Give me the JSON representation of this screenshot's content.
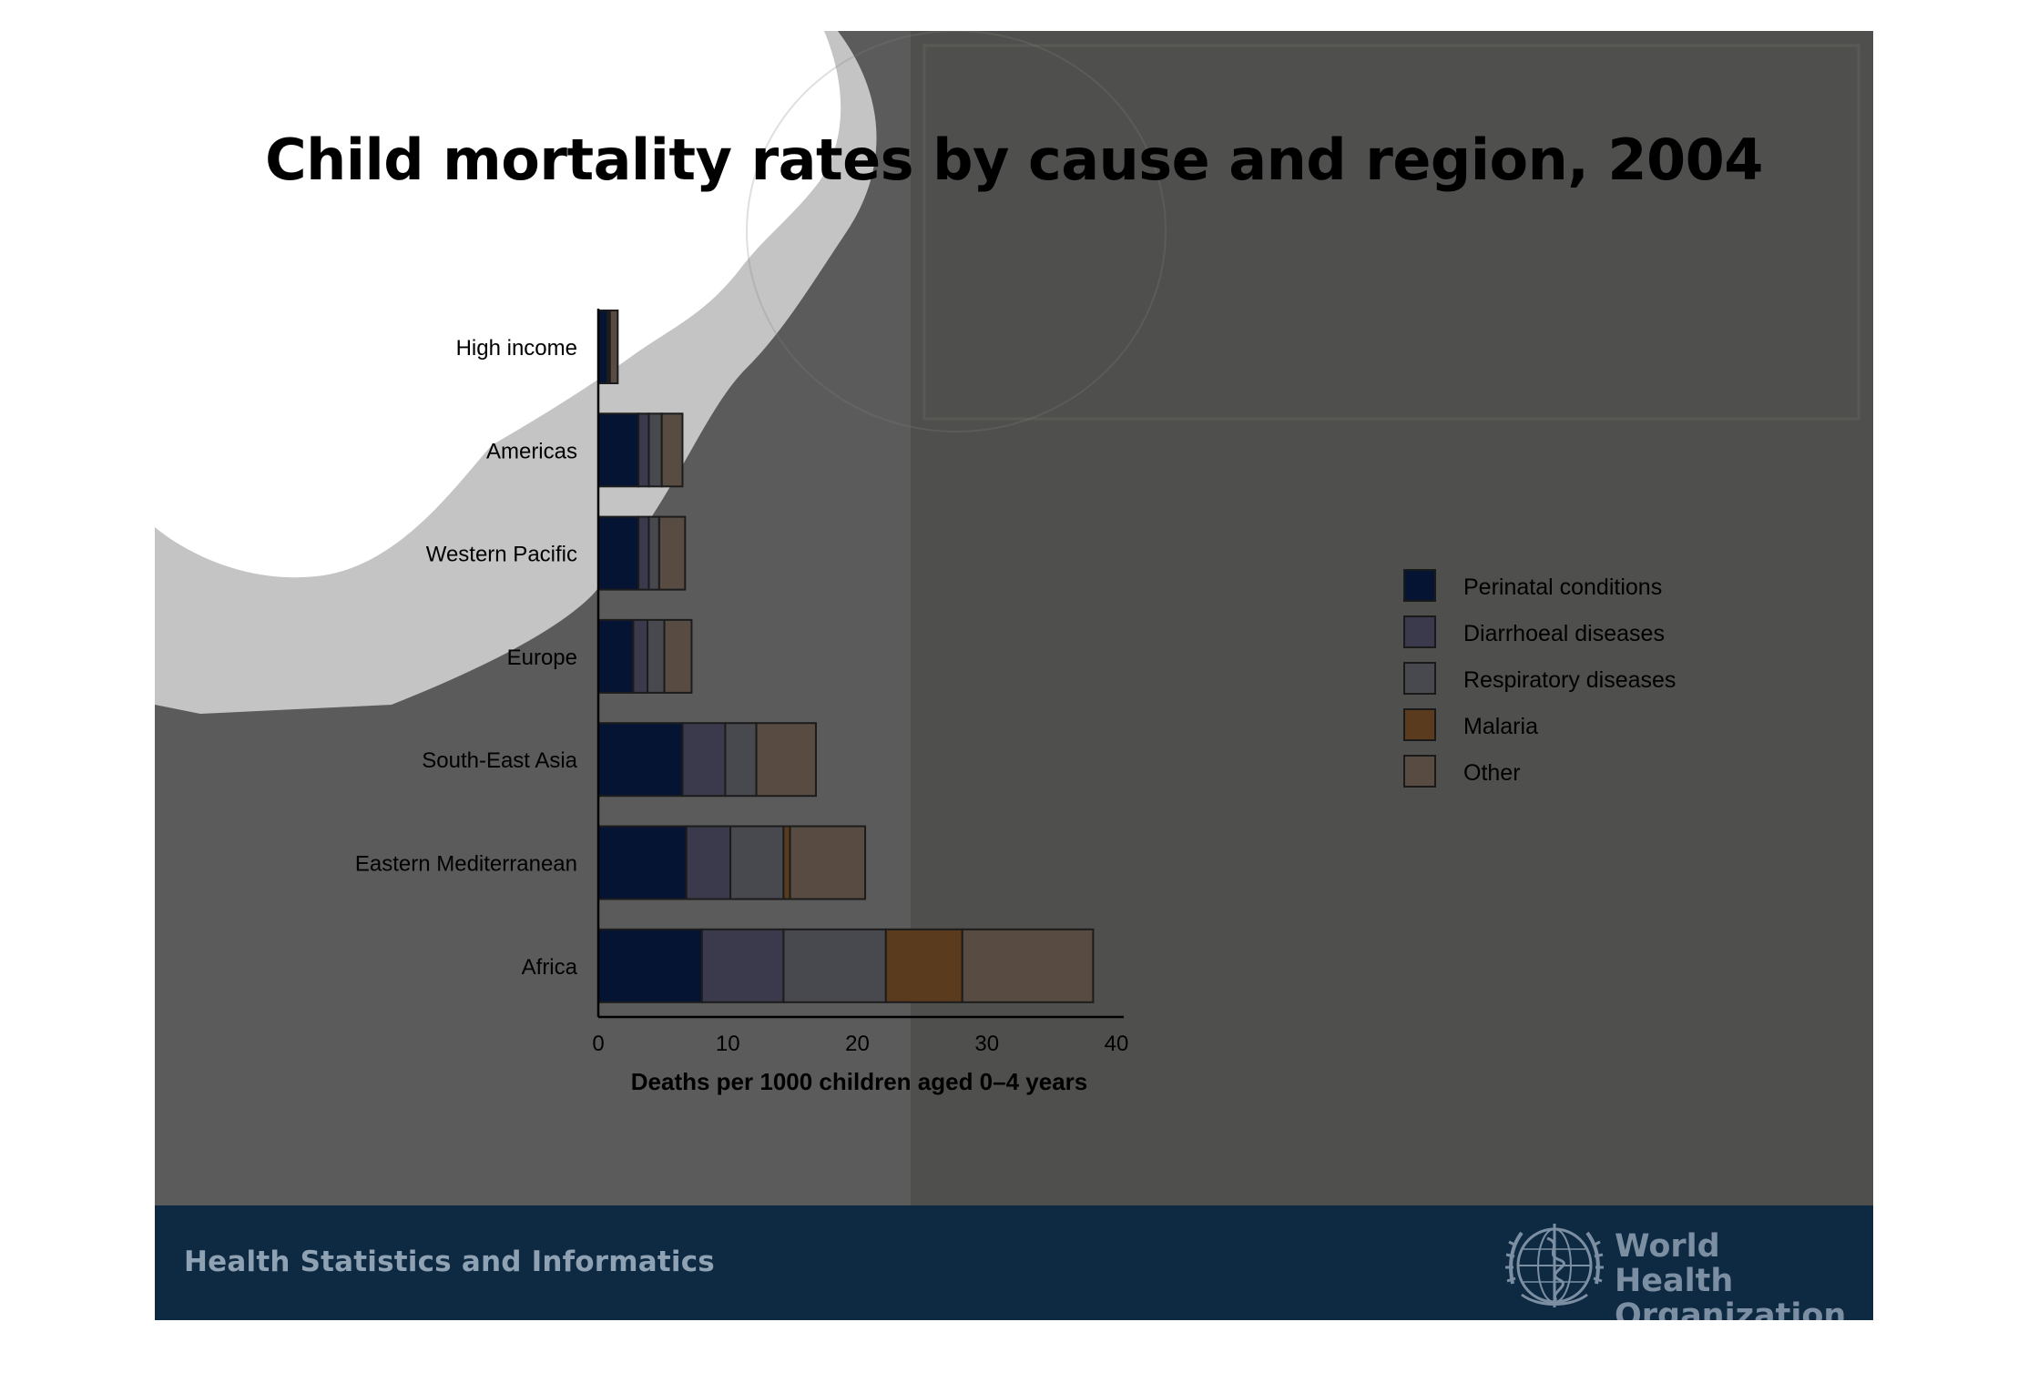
{
  "slide": {
    "title": "Child mortality rates by cause and region, 2004",
    "footer_text": "Health Statistics and Informatics",
    "organization_line1": "World Health",
    "organization_line2": "Organization",
    "colors": {
      "background": "#5b5b5b",
      "footer": "#0e2a42",
      "white_shape": "#ffffff",
      "grey_shape": "#c4c4c4"
    }
  },
  "chart_data": {
    "type": "bar",
    "orientation": "horizontal",
    "stacked": true,
    "title": "Child mortality rates by cause and region, 2004",
    "xlabel": "Deaths per 1000 children aged 0–4 years",
    "ylabel": "",
    "xlim": [
      0,
      40
    ],
    "xticks": [
      "0",
      "10",
      "20",
      "30",
      "40"
    ],
    "grid": false,
    "legend_position": "right",
    "categories": [
      "High income",
      "Americas",
      "Western Pacific",
      "Europe",
      "South-East Asia",
      "Eastern Mediterranean",
      "Africa"
    ],
    "series": [
      {
        "name": "Perinatal conditions",
        "color": "#051433",
        "values": [
          0.7,
          3.1,
          3.1,
          2.7,
          6.5,
          6.8,
          8.0
        ]
      },
      {
        "name": "Diarrhoeal diseases",
        "color": "#3a3a4c",
        "values": [
          0.1,
          0.8,
          0.8,
          1.1,
          3.3,
          3.4,
          6.3
        ]
      },
      {
        "name": "Respiratory diseases",
        "color": "#48484f",
        "values": [
          0.1,
          1.0,
          0.8,
          1.3,
          2.4,
          4.1,
          7.9
        ]
      },
      {
        "name": "Malaria",
        "color": "#5a3b1e",
        "values": [
          0.0,
          0.0,
          0.0,
          0.0,
          0.0,
          0.5,
          5.9
        ]
      },
      {
        "name": "Other",
        "color": "#584b42",
        "values": [
          0.6,
          1.6,
          2.0,
          2.1,
          4.6,
          5.8,
          10.1
        ]
      }
    ]
  }
}
